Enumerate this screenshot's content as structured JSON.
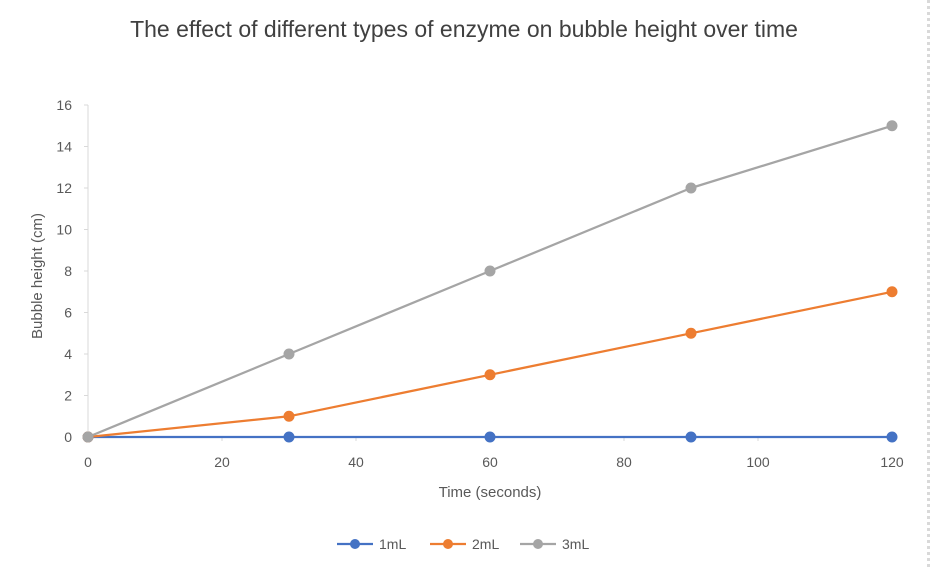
{
  "chart_data": {
    "type": "line",
    "title": "The effect of different types of enzyme on bubble height over time",
    "xlabel": "Time (seconds)",
    "ylabel": "Bubble height (cm)",
    "xlim": [
      0,
      120
    ],
    "ylim": [
      0,
      16
    ],
    "xticks": [
      0,
      20,
      40,
      60,
      80,
      100,
      120
    ],
    "yticks": [
      0,
      2,
      4,
      6,
      8,
      10,
      12,
      14,
      16
    ],
    "x": [
      0,
      30,
      60,
      90,
      120
    ],
    "grid": false,
    "legend_position": "bottom",
    "series": [
      {
        "name": "1mL",
        "color": "#4472C4",
        "values": [
          0,
          0,
          0,
          0,
          0
        ]
      },
      {
        "name": "2mL",
        "color": "#ED7D31",
        "values": [
          0,
          1,
          3,
          5,
          7
        ]
      },
      {
        "name": "3mL",
        "color": "#A5A5A5",
        "values": [
          0,
          4,
          8,
          12,
          15
        ]
      }
    ]
  }
}
